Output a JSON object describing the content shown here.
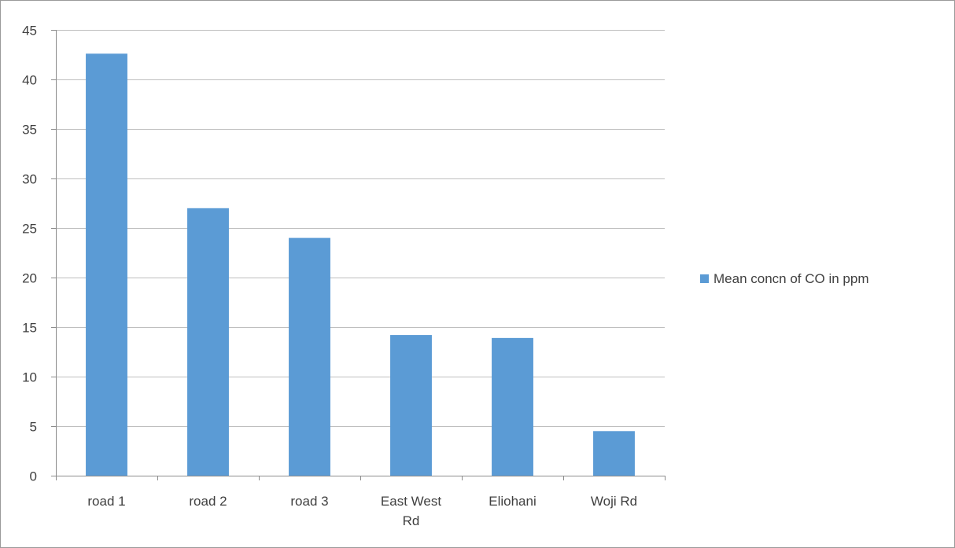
{
  "chart_data": {
    "type": "bar",
    "categories": [
      [
        "road 1"
      ],
      [
        "road 2"
      ],
      [
        "road 3"
      ],
      [
        "East West",
        "Rd"
      ],
      [
        "Eliohani"
      ],
      [
        "Woji Rd"
      ]
    ],
    "series": [
      {
        "name": "Mean concn of CO in ppm",
        "values": [
          42.6,
          27.0,
          24.0,
          14.2,
          13.9,
          4.5
        ]
      }
    ],
    "ylim": [
      0,
      45
    ],
    "ytick_step": 5,
    "yticks": [
      "0",
      "5",
      "10",
      "15",
      "20",
      "25",
      "30",
      "35",
      "40",
      "45"
    ],
    "grid": true,
    "legend_position": "right",
    "colors": {
      "bar": "#5b9bd5",
      "grid": "#bfbfbf",
      "axis": "#8c8c8c",
      "text": "#404040"
    }
  }
}
